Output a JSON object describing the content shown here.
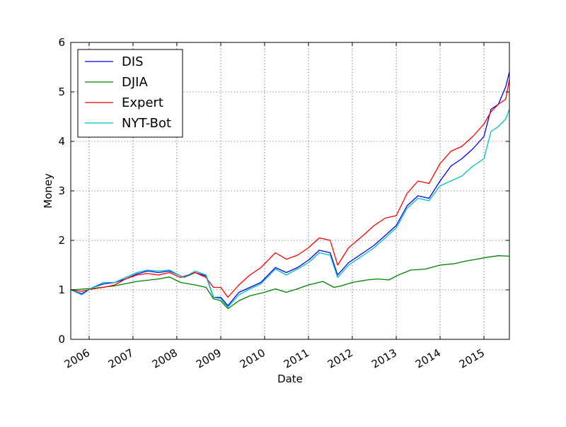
{
  "chart_data": {
    "type": "line",
    "title": "",
    "xlabel": "Date",
    "ylabel": "Money",
    "xlim": [
      "2005-08-01",
      "2015-08-01"
    ],
    "ylim": [
      0,
      6
    ],
    "y_ticks": [
      0,
      1,
      2,
      3,
      4,
      5,
      6
    ],
    "x_ticks": [
      {
        "date": "2006-01-01",
        "label": "2006"
      },
      {
        "date": "2007-01-01",
        "label": "2007"
      },
      {
        "date": "2008-01-01",
        "label": "2008"
      },
      {
        "date": "2009-01-01",
        "label": "2009"
      },
      {
        "date": "2010-01-01",
        "label": "2010"
      },
      {
        "date": "2011-01-01",
        "label": "2011"
      },
      {
        "date": "2012-01-01",
        "label": "2012"
      },
      {
        "date": "2013-01-01",
        "label": "2013"
      },
      {
        "date": "2014-01-01",
        "label": "2014"
      },
      {
        "date": "2015-01-01",
        "label": "2015"
      }
    ],
    "grid": true,
    "legend_position": "top-left",
    "series": [
      {
        "name": "DIS",
        "color": "#0000ff",
        "points": [
          [
            "2005-08-01",
            1.0
          ],
          [
            "2005-11-01",
            0.92
          ],
          [
            "2006-02-01",
            1.05
          ],
          [
            "2006-05-01",
            1.12
          ],
          [
            "2006-08-01",
            1.15
          ],
          [
            "2006-11-01",
            1.22
          ],
          [
            "2007-02-01",
            1.32
          ],
          [
            "2007-05-01",
            1.38
          ],
          [
            "2007-08-01",
            1.35
          ],
          [
            "2007-11-01",
            1.38
          ],
          [
            "2008-01-01",
            1.32
          ],
          [
            "2008-03-01",
            1.25
          ],
          [
            "2008-06-01",
            1.35
          ],
          [
            "2008-09-01",
            1.28
          ],
          [
            "2008-11-01",
            0.85
          ],
          [
            "2009-01-01",
            0.85
          ],
          [
            "2009-03-01",
            0.68
          ],
          [
            "2009-06-01",
            0.95
          ],
          [
            "2009-09-01",
            1.05
          ],
          [
            "2009-12-01",
            1.15
          ],
          [
            "2010-04-01",
            1.45
          ],
          [
            "2010-07-01",
            1.35
          ],
          [
            "2010-10-01",
            1.45
          ],
          [
            "2011-01-01",
            1.6
          ],
          [
            "2011-04-01",
            1.8
          ],
          [
            "2011-07-01",
            1.75
          ],
          [
            "2011-09-01",
            1.3
          ],
          [
            "2011-12-01",
            1.55
          ],
          [
            "2012-04-01",
            1.75
          ],
          [
            "2012-07-01",
            1.9
          ],
          [
            "2012-10-01",
            2.1
          ],
          [
            "2013-01-01",
            2.3
          ],
          [
            "2013-04-01",
            2.7
          ],
          [
            "2013-07-01",
            2.9
          ],
          [
            "2013-10-01",
            2.85
          ],
          [
            "2014-01-01",
            3.2
          ],
          [
            "2014-04-01",
            3.5
          ],
          [
            "2014-07-01",
            3.65
          ],
          [
            "2014-10-01",
            3.85
          ],
          [
            "2015-01-01",
            4.1
          ],
          [
            "2015-03-01",
            4.65
          ],
          [
            "2015-05-01",
            4.75
          ],
          [
            "2015-07-01",
            5.1
          ],
          [
            "2015-08-01",
            5.4
          ]
        ]
      },
      {
        "name": "DJIA",
        "color": "#008000",
        "points": [
          [
            "2005-08-01",
            1.0
          ],
          [
            "2006-02-01",
            1.03
          ],
          [
            "2006-08-01",
            1.08
          ],
          [
            "2007-02-01",
            1.17
          ],
          [
            "2007-08-01",
            1.22
          ],
          [
            "2007-11-01",
            1.26
          ],
          [
            "2008-02-01",
            1.15
          ],
          [
            "2008-06-01",
            1.1
          ],
          [
            "2008-09-01",
            1.05
          ],
          [
            "2008-11-01",
            0.82
          ],
          [
            "2009-01-01",
            0.78
          ],
          [
            "2009-03-01",
            0.62
          ],
          [
            "2009-06-01",
            0.78
          ],
          [
            "2009-09-01",
            0.88
          ],
          [
            "2010-01-01",
            0.95
          ],
          [
            "2010-04-01",
            1.02
          ],
          [
            "2010-07-01",
            0.95
          ],
          [
            "2010-10-01",
            1.02
          ],
          [
            "2011-01-01",
            1.1
          ],
          [
            "2011-05-01",
            1.17
          ],
          [
            "2011-08-01",
            1.05
          ],
          [
            "2011-10-01",
            1.08
          ],
          [
            "2012-01-01",
            1.15
          ],
          [
            "2012-05-01",
            1.2
          ],
          [
            "2012-08-01",
            1.22
          ],
          [
            "2012-11-01",
            1.2
          ],
          [
            "2013-01-01",
            1.28
          ],
          [
            "2013-05-01",
            1.4
          ],
          [
            "2013-09-01",
            1.42
          ],
          [
            "2014-01-01",
            1.5
          ],
          [
            "2014-05-01",
            1.53
          ],
          [
            "2014-08-01",
            1.58
          ],
          [
            "2014-11-01",
            1.62
          ],
          [
            "2015-02-01",
            1.66
          ],
          [
            "2015-05-01",
            1.69
          ],
          [
            "2015-08-01",
            1.68
          ]
        ]
      },
      {
        "name": "Expert",
        "color": "#ff0000",
        "points": [
          [
            "2005-08-01",
            1.0
          ],
          [
            "2005-11-01",
            0.97
          ],
          [
            "2006-02-01",
            1.02
          ],
          [
            "2006-05-01",
            1.05
          ],
          [
            "2006-08-01",
            1.1
          ],
          [
            "2006-11-01",
            1.22
          ],
          [
            "2007-02-01",
            1.3
          ],
          [
            "2007-05-01",
            1.33
          ],
          [
            "2007-08-01",
            1.3
          ],
          [
            "2007-11-01",
            1.35
          ],
          [
            "2008-02-01",
            1.25
          ],
          [
            "2008-06-01",
            1.35
          ],
          [
            "2008-09-01",
            1.25
          ],
          [
            "2008-11-01",
            1.05
          ],
          [
            "2009-01-01",
            1.05
          ],
          [
            "2009-03-01",
            0.85
          ],
          [
            "2009-06-01",
            1.1
          ],
          [
            "2009-09-01",
            1.3
          ],
          [
            "2009-12-01",
            1.45
          ],
          [
            "2010-04-01",
            1.75
          ],
          [
            "2010-07-01",
            1.62
          ],
          [
            "2010-10-01",
            1.7
          ],
          [
            "2011-01-01",
            1.85
          ],
          [
            "2011-04-01",
            2.05
          ],
          [
            "2011-07-01",
            2.0
          ],
          [
            "2011-09-01",
            1.5
          ],
          [
            "2011-12-01",
            1.85
          ],
          [
            "2012-04-01",
            2.1
          ],
          [
            "2012-07-01",
            2.3
          ],
          [
            "2012-10-01",
            2.45
          ],
          [
            "2013-01-01",
            2.5
          ],
          [
            "2013-04-01",
            2.95
          ],
          [
            "2013-07-01",
            3.2
          ],
          [
            "2013-10-01",
            3.15
          ],
          [
            "2014-01-01",
            3.55
          ],
          [
            "2014-04-01",
            3.8
          ],
          [
            "2014-07-01",
            3.9
          ],
          [
            "2014-10-01",
            4.1
          ],
          [
            "2015-01-01",
            4.35
          ],
          [
            "2015-03-01",
            4.6
          ],
          [
            "2015-05-01",
            4.75
          ],
          [
            "2015-07-01",
            4.85
          ],
          [
            "2015-08-01",
            5.25
          ]
        ]
      },
      {
        "name": "NYT-Bot",
        "color": "#00bfbf",
        "points": [
          [
            "2005-08-01",
            1.0
          ],
          [
            "2005-11-01",
            0.9
          ],
          [
            "2006-02-01",
            1.05
          ],
          [
            "2006-05-01",
            1.15
          ],
          [
            "2006-08-01",
            1.15
          ],
          [
            "2006-11-01",
            1.25
          ],
          [
            "2007-02-01",
            1.35
          ],
          [
            "2007-05-01",
            1.4
          ],
          [
            "2007-08-01",
            1.38
          ],
          [
            "2007-11-01",
            1.4
          ],
          [
            "2008-01-01",
            1.32
          ],
          [
            "2008-03-01",
            1.25
          ],
          [
            "2008-06-01",
            1.38
          ],
          [
            "2008-09-01",
            1.3
          ],
          [
            "2008-11-01",
            0.85
          ],
          [
            "2009-01-01",
            0.82
          ],
          [
            "2009-03-01",
            0.65
          ],
          [
            "2009-06-01",
            0.9
          ],
          [
            "2009-09-01",
            1.02
          ],
          [
            "2009-12-01",
            1.12
          ],
          [
            "2010-04-01",
            1.42
          ],
          [
            "2010-07-01",
            1.3
          ],
          [
            "2010-10-01",
            1.42
          ],
          [
            "2011-01-01",
            1.55
          ],
          [
            "2011-04-01",
            1.75
          ],
          [
            "2011-07-01",
            1.7
          ],
          [
            "2011-09-01",
            1.25
          ],
          [
            "2011-12-01",
            1.5
          ],
          [
            "2012-04-01",
            1.7
          ],
          [
            "2012-07-01",
            1.85
          ],
          [
            "2012-10-01",
            2.05
          ],
          [
            "2013-01-01",
            2.25
          ],
          [
            "2013-04-01",
            2.65
          ],
          [
            "2013-07-01",
            2.85
          ],
          [
            "2013-10-01",
            2.8
          ],
          [
            "2014-01-01",
            3.1
          ],
          [
            "2014-04-01",
            3.2
          ],
          [
            "2014-07-01",
            3.3
          ],
          [
            "2014-10-01",
            3.5
          ],
          [
            "2015-01-01",
            3.65
          ],
          [
            "2015-03-01",
            4.2
          ],
          [
            "2015-05-01",
            4.3
          ],
          [
            "2015-07-01",
            4.45
          ],
          [
            "2015-08-01",
            4.65
          ]
        ]
      }
    ]
  }
}
